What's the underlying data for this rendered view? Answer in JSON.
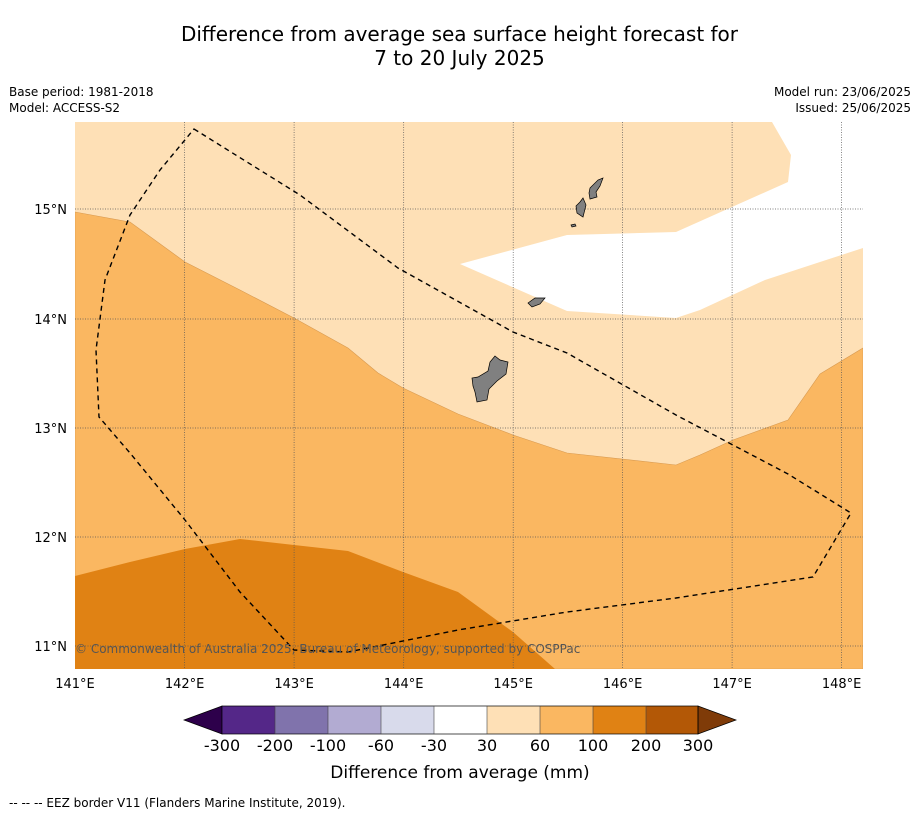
{
  "header": {
    "title_line1": "Difference from average sea surface height forecast for",
    "title_line2": "7 to 20 July 2025",
    "base_period": "Base period: 1981-2018",
    "model": "Model: ACCESS-S2",
    "model_run": "Model run: 23/06/2025",
    "issued": "Issued: 25/06/2025"
  },
  "map": {
    "lon_range": [
      141.0,
      148.2
    ],
    "lat_range": [
      10.8,
      15.8
    ],
    "lon_ticks": [
      141,
      142,
      143,
      144,
      145,
      146,
      147,
      148
    ],
    "lon_tick_labels": [
      "141°E",
      "142°E",
      "143°E",
      "144°E",
      "145°E",
      "146°E",
      "147°E",
      "148°E"
    ],
    "lat_ticks": [
      11,
      12,
      13,
      14,
      15
    ],
    "lat_tick_labels": [
      "11°N",
      "12°N",
      "13°N",
      "14°N",
      "15°N"
    ],
    "copyright": "© Commonwealth of Australia 2025, Bureau of Meteorology, supported by COSPPac",
    "grid": true,
    "colors": {
      "band_100_200": "#e08214",
      "band_60_100": "#fab761",
      "band_30_60": "#fee0b6",
      "band_neutral": "#ffffff",
      "land": "#808080"
    }
  },
  "colorbar": {
    "tick_labels": [
      "-300",
      "-200",
      "-100",
      "-60",
      "-30",
      "30",
      "60",
      "100",
      "200",
      "300"
    ],
    "colors": [
      "#2d004b",
      "#542788",
      "#8073ac",
      "#b2abd2",
      "#d8daeb",
      "#ffffff",
      "#fee0b6",
      "#fab761",
      "#e08214",
      "#b35806",
      "#7f3b08"
    ],
    "label": "Difference from average (mm)"
  },
  "footer": {
    "eez_note": "--  --  -- EEZ border V11 (Flanders Marine Institute, 2019)."
  }
}
